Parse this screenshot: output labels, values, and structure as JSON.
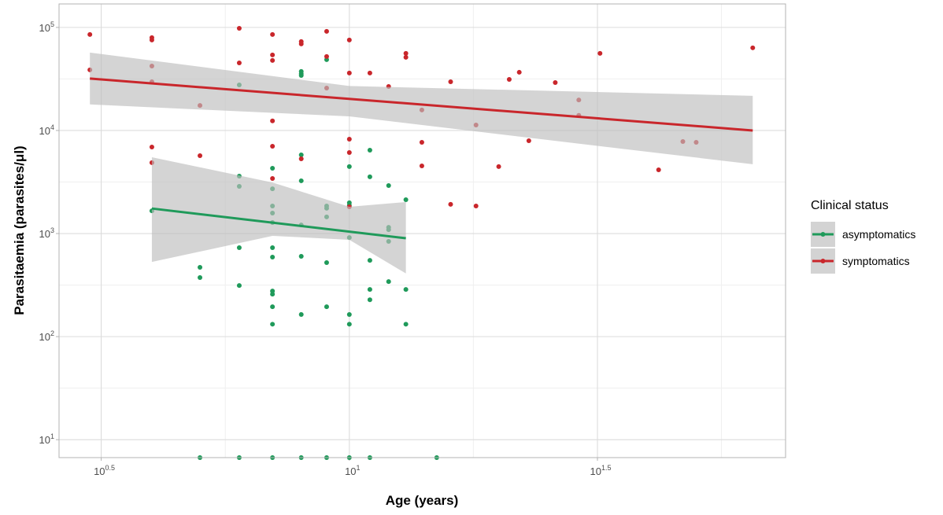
{
  "chart_data": {
    "type": "scatter",
    "xlabel": "Age (years)",
    "ylabel": "Parasitaemia (parasites/μl)",
    "legend_title": "Clinical status",
    "legend": "right",
    "log_x": true,
    "log_y": true,
    "grid": true,
    "xlim": [
      2.6,
      75.7
    ],
    "ylim": [
      6.7,
      169000
    ],
    "xticks": [
      {
        "value": 3.162,
        "label": "10",
        "power": "0.5"
      },
      {
        "value": 10,
        "label": "10",
        "power": "1"
      },
      {
        "value": 31.62,
        "label": "10",
        "power": "1.5"
      }
    ],
    "yticks": [
      {
        "value": 10,
        "label": "10",
        "power": "1"
      },
      {
        "value": 100,
        "label": "10",
        "power": "2"
      },
      {
        "value": 1000,
        "label": "10",
        "power": "3"
      },
      {
        "value": 10000,
        "label": "10",
        "power": "4"
      },
      {
        "value": 100000,
        "label": "10",
        "power": "5"
      }
    ],
    "xminor": [
      5.623,
      17.78,
      56.23
    ],
    "yminor": [
      31.62,
      316.2,
      3162,
      31623
    ],
    "series": [
      {
        "name": "asymptomatics",
        "color": "#1f9a5a",
        "x": [
          4,
          5,
          5,
          6,
          6,
          6,
          6,
          6,
          7,
          7,
          7,
          7,
          7,
          7,
          7,
          7,
          7,
          7,
          7,
          8,
          8,
          8,
          8,
          8,
          8,
          8,
          8,
          9,
          9,
          9,
          9,
          9,
          9,
          10,
          10,
          10,
          10,
          10,
          10,
          11,
          11,
          11,
          11,
          11,
          12,
          12,
          12,
          12,
          12,
          13,
          13,
          13,
          5,
          6,
          7,
          8,
          9,
          10,
          11,
          15
        ],
        "values": [
          1660,
          470,
          374,
          27700,
          3610,
          2870,
          729,
          313,
          4300,
          2720,
          1850,
          1580,
          1280,
          729,
          591,
          277,
          258,
          195,
          132,
          37400,
          35500,
          34200,
          5800,
          3250,
          1210,
          601,
          164,
          48700,
          1850,
          1760,
          1450,
          522,
          195,
          4460,
          1990,
          1880,
          915,
          164,
          132,
          6440,
          3550,
          550,
          287,
          228,
          2920,
          1150,
          1090,
          839,
          342,
          2130,
          287,
          132,
          6.7,
          6.7,
          6.7,
          6.7,
          6.7,
          6.7,
          6.7,
          6.7
        ],
        "fit": {
          "x": [
            4,
            13
          ],
          "values": [
            1750,
            900
          ]
        },
        "band": {
          "x": [
            4,
            7,
            10,
            13
          ],
          "lower": [
            530,
            950,
            870,
            410
          ],
          "upper": [
            5500,
            3130,
            1820,
            2020
          ]
        }
      },
      {
        "name": "symptomatics",
        "color": "#c9262b",
        "x": [
          3,
          3,
          4,
          4,
          4,
          4,
          4,
          4,
          5,
          5,
          6,
          6,
          7,
          7,
          7,
          7,
          7,
          7,
          8,
          8,
          8,
          9,
          9,
          9,
          10,
          10,
          10,
          10,
          10,
          11,
          12,
          13,
          13,
          14,
          14,
          14,
          16,
          18,
          18,
          16,
          20,
          21,
          22,
          23,
          26,
          29,
          29,
          32,
          42,
          47,
          50,
          65
        ],
        "values": [
          85300,
          38700,
          79600,
          75500,
          42200,
          29700,
          6910,
          4870,
          17500,
          5700,
          98000,
          45300,
          85300,
          54100,
          47800,
          12400,
          7030,
          3420,
          72900,
          69200,
          5310,
          91600,
          52200,
          25800,
          75500,
          36100,
          8240,
          6110,
          1820,
          36100,
          26700,
          56000,
          51300,
          15800,
          7680,
          4530,
          29700,
          11300,
          1850,
          1920,
          4460,
          31300,
          36700,
          7960,
          29200,
          14000,
          19800,
          56000,
          4150,
          7820,
          7680,
          63400
        ],
        "fit": {
          "x": [
            3,
            65
          ],
          "values": [
            31900,
            10000
          ]
        },
        "band": {
          "x": [
            3,
            10,
            65
          ],
          "lower": [
            17900,
            13700,
            4700
          ],
          "upper": [
            57000,
            27000,
            21700
          ]
        }
      }
    ]
  }
}
